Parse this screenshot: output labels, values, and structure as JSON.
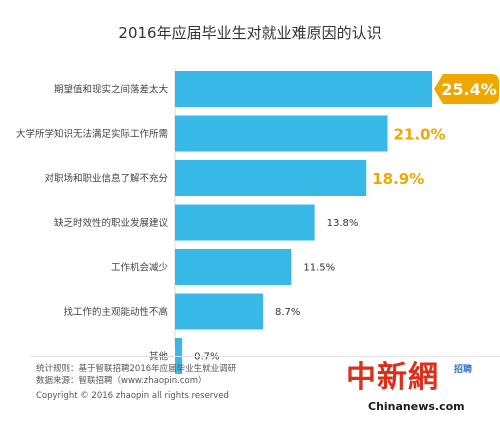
{
  "title": "2016年应届毕业生对就业难原因的认识",
  "chart_data": {
    "type": "bar",
    "orientation": "horizontal",
    "title": "2016年应届毕业生对就业难原因的认识",
    "categories": [
      "期望值和现实之间落差太大",
      "大学所学知识无法满足实际工作所需",
      "对职场和职业信息了解不充分",
      "缺乏时效性的职业发展建议",
      "工作机会减少",
      "找工作的主观能动性不高",
      "其他"
    ],
    "values": [
      25.4,
      21.0,
      18.9,
      13.8,
      11.5,
      8.7,
      0.7
    ],
    "labels": [
      "25.4%",
      "21.0%",
      "18.9%",
      "13.8%",
      "11.5%",
      "8.7%",
      "0.7%"
    ],
    "xlim": [
      0,
      25.4
    ],
    "bar_color": "#38b8e6",
    "highlight_label_color": "#f0a800",
    "highlight_count": 3,
    "grid": false,
    "legend": "none"
  },
  "footer": {
    "source_1": "统计规则：基于智联招聘2016年应届毕业生就业调研",
    "source_2": "数据来源：智联招聘（www.zhaopin.com）",
    "copyright": "Copyright © 2016 zhaopin all rights reserved"
  },
  "watermark": {
    "logo_text": "中新網",
    "brand": "招聘",
    "site": "Chinanews.com"
  }
}
